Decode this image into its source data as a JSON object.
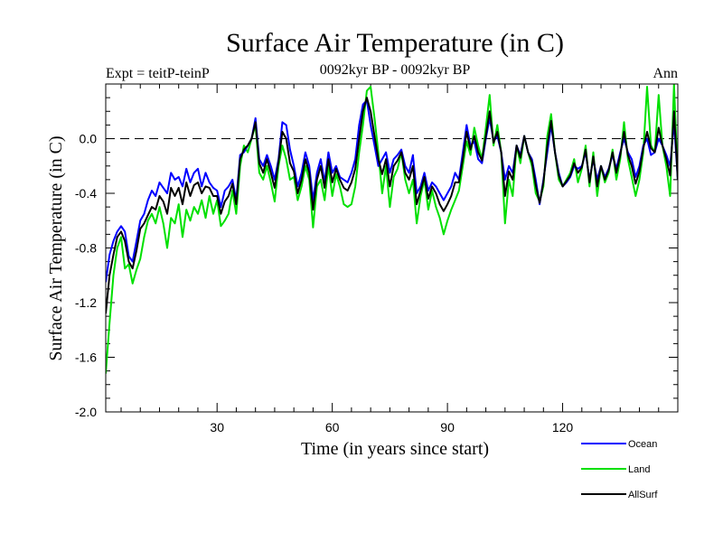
{
  "chart_data": {
    "type": "line",
    "title": "Surface Air Temperature (in C)",
    "subtitle_left": "Expt = teitP-teinP",
    "subtitle_center": "0092kyr BP - 0092kyr BP",
    "subtitle_right": "Ann",
    "xlabel": "Time (in years since start)",
    "ylabel": "Surface Air Temperature (in C)",
    "xlim": [
      1,
      150
    ],
    "ylim": [
      -2.0,
      0.4
    ],
    "xticks": [
      30,
      60,
      90,
      120
    ],
    "xtick_labels": [
      "30",
      "60",
      "90",
      "120"
    ],
    "yticks": [
      -2.0,
      -1.6,
      -1.2,
      -0.8,
      -0.4,
      0.0
    ],
    "ytick_labels": [
      "-2.0",
      "-1.6",
      "-1.2",
      "-0.8",
      "-0.4",
      "0.0"
    ],
    "reference_line": 0.0,
    "legend_position": "bottom-right",
    "series": [
      {
        "name": "Land",
        "color": "#00e000",
        "values": [
          -1.72,
          -1.35,
          -1.0,
          -0.8,
          -0.72,
          -0.95,
          -0.92,
          -1.06,
          -0.96,
          -0.88,
          -0.72,
          -0.6,
          -0.55,
          -0.62,
          -0.5,
          -0.62,
          -0.8,
          -0.58,
          -0.62,
          -0.48,
          -0.72,
          -0.52,
          -0.6,
          -0.5,
          -0.55,
          -0.45,
          -0.58,
          -0.42,
          -0.55,
          -0.45,
          -0.64,
          -0.6,
          -0.55,
          -0.38,
          -0.55,
          -0.2,
          -0.05,
          -0.1,
          0.0,
          0.1,
          -0.25,
          -0.3,
          -0.2,
          -0.32,
          -0.46,
          -0.2,
          -0.05,
          -0.15,
          -0.3,
          -0.28,
          -0.45,
          -0.35,
          -0.2,
          -0.3,
          -0.65,
          -0.35,
          -0.3,
          -0.45,
          -0.2,
          -0.42,
          -0.26,
          -0.35,
          -0.48,
          -0.5,
          -0.48,
          -0.35,
          -0.1,
          0.1,
          0.35,
          0.38,
          0.15,
          -0.1,
          -0.4,
          -0.2,
          -0.5,
          -0.28,
          -0.22,
          -0.1,
          -0.3,
          -0.4,
          -0.3,
          -0.62,
          -0.42,
          -0.3,
          -0.52,
          -0.38,
          -0.5,
          -0.58,
          -0.7,
          -0.6,
          -0.52,
          -0.45,
          -0.38,
          -0.2,
          -0.02,
          -0.12,
          0.08,
          -0.05,
          -0.15,
          0.08,
          0.32,
          -0.05,
          0.1,
          -0.1,
          -0.62,
          -0.3,
          -0.42,
          -0.05,
          -0.18,
          0.02,
          -0.1,
          -0.2,
          -0.4,
          -0.46,
          -0.35,
          0.02,
          0.18,
          -0.1,
          -0.3,
          -0.35,
          -0.3,
          -0.25,
          -0.15,
          -0.32,
          -0.22,
          -0.05,
          -0.35,
          -0.1,
          -0.42,
          -0.2,
          -0.32,
          -0.25,
          -0.08,
          -0.3,
          -0.15,
          0.12,
          -0.15,
          -0.28,
          -0.42,
          -0.3,
          -0.1,
          0.38,
          -0.05,
          -0.1,
          0.32,
          -0.05,
          -0.2,
          -0.42,
          0.4,
          -0.3
        ]
      },
      {
        "name": "Ocean",
        "color": "#0000ff",
        "values": [
          -1.05,
          -0.85,
          -0.75,
          -0.68,
          -0.64,
          -0.68,
          -0.86,
          -0.9,
          -0.75,
          -0.6,
          -0.55,
          -0.45,
          -0.38,
          -0.42,
          -0.32,
          -0.36,
          -0.4,
          -0.25,
          -0.3,
          -0.28,
          -0.35,
          -0.22,
          -0.32,
          -0.25,
          -0.22,
          -0.35,
          -0.25,
          -0.32,
          -0.36,
          -0.38,
          -0.5,
          -0.38,
          -0.35,
          -0.3,
          -0.45,
          -0.12,
          -0.1,
          -0.05,
          0.0,
          0.15,
          -0.15,
          -0.2,
          -0.12,
          -0.2,
          -0.3,
          -0.15,
          0.12,
          0.1,
          -0.08,
          -0.2,
          -0.35,
          -0.25,
          -0.1,
          -0.2,
          -0.45,
          -0.25,
          -0.15,
          -0.32,
          -0.1,
          -0.25,
          -0.2,
          -0.28,
          -0.3,
          -0.32,
          -0.25,
          -0.15,
          0.1,
          0.25,
          0.28,
          0.1,
          -0.05,
          -0.2,
          -0.15,
          -0.1,
          -0.25,
          -0.15,
          -0.12,
          -0.08,
          -0.2,
          -0.25,
          -0.12,
          -0.4,
          -0.35,
          -0.25,
          -0.38,
          -0.32,
          -0.35,
          -0.4,
          -0.45,
          -0.4,
          -0.35,
          -0.25,
          -0.3,
          -0.1,
          0.1,
          -0.05,
          -0.02,
          -0.15,
          -0.18,
          0.0,
          0.15,
          -0.02,
          0.02,
          -0.1,
          -0.3,
          -0.2,
          -0.25,
          -0.05,
          -0.12,
          0.02,
          -0.1,
          -0.15,
          -0.3,
          -0.48,
          -0.3,
          -0.1,
          0.1,
          -0.1,
          -0.25,
          -0.35,
          -0.32,
          -0.28,
          -0.2,
          -0.22,
          -0.2,
          -0.1,
          -0.3,
          -0.15,
          -0.3,
          -0.2,
          -0.28,
          -0.22,
          -0.12,
          -0.22,
          -0.1,
          0.0,
          -0.1,
          -0.15,
          -0.28,
          -0.2,
          -0.05,
          0.0,
          -0.12,
          -0.1,
          0.0,
          -0.05,
          -0.12,
          -0.2,
          0.12,
          -0.3
        ]
      },
      {
        "name": "AllSurf",
        "color": "#000000",
        "values": [
          -1.28,
          -1.0,
          -0.85,
          -0.72,
          -0.68,
          -0.75,
          -0.9,
          -0.95,
          -0.82,
          -0.66,
          -0.62,
          -0.56,
          -0.5,
          -0.52,
          -0.42,
          -0.46,
          -0.55,
          -0.36,
          -0.42,
          -0.36,
          -0.48,
          -0.32,
          -0.42,
          -0.34,
          -0.32,
          -0.4,
          -0.35,
          -0.36,
          -0.42,
          -0.42,
          -0.55,
          -0.46,
          -0.42,
          -0.33,
          -0.48,
          -0.15,
          -0.08,
          -0.05,
          0.0,
          0.12,
          -0.18,
          -0.25,
          -0.15,
          -0.25,
          -0.36,
          -0.17,
          0.05,
          0.0,
          -0.18,
          -0.24,
          -0.4,
          -0.3,
          -0.15,
          -0.25,
          -0.52,
          -0.3,
          -0.2,
          -0.36,
          -0.15,
          -0.32,
          -0.22,
          -0.3,
          -0.36,
          -0.38,
          -0.32,
          -0.22,
          0.0,
          0.2,
          0.3,
          0.2,
          0.02,
          -0.15,
          -0.26,
          -0.15,
          -0.35,
          -0.2,
          -0.16,
          -0.1,
          -0.25,
          -0.3,
          -0.2,
          -0.48,
          -0.38,
          -0.28,
          -0.44,
          -0.35,
          -0.4,
          -0.48,
          -0.53,
          -0.48,
          -0.42,
          -0.32,
          -0.32,
          -0.15,
          0.05,
          -0.08,
          0.02,
          -0.1,
          -0.16,
          0.02,
          0.2,
          -0.03,
          0.05,
          -0.1,
          -0.42,
          -0.24,
          -0.3,
          -0.05,
          -0.14,
          0.02,
          -0.1,
          -0.17,
          -0.34,
          -0.47,
          -0.32,
          -0.05,
          0.13,
          -0.1,
          -0.27,
          -0.35,
          -0.31,
          -0.27,
          -0.18,
          -0.25,
          -0.21,
          -0.08,
          -0.32,
          -0.13,
          -0.35,
          -0.2,
          -0.3,
          -0.23,
          -0.1,
          -0.25,
          -0.12,
          0.05,
          -0.12,
          -0.2,
          -0.33,
          -0.24,
          -0.07,
          0.05,
          -0.07,
          -0.1,
          0.08,
          -0.05,
          -0.15,
          -0.27,
          0.2,
          -0.3
        ]
      }
    ]
  }
}
